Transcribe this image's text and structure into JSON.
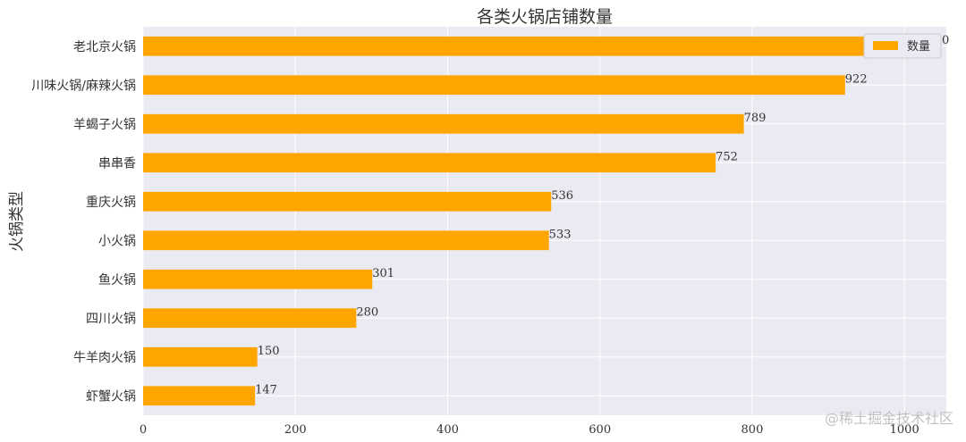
{
  "chart_data": {
    "type": "bar",
    "orientation": "horizontal",
    "title": "各类火锅店铺数量",
    "xlabel": "",
    "ylabel": "火锅类型",
    "categories": [
      "虾蟹火锅",
      "牛羊肉火锅",
      "四川火锅",
      "鱼火锅",
      "小火锅",
      "重庆火锅",
      "串串香",
      "羊蝎子火锅",
      "川味火锅/麻辣火锅",
      "老北京火锅"
    ],
    "series": [
      {
        "name": "数量",
        "values": [
          147,
          150,
          280,
          301,
          533,
          536,
          752,
          789,
          922,
          1020
        ],
        "color": "#FFA500"
      }
    ],
    "xlim": [
      0,
      1055
    ],
    "xticks": [
      0,
      200,
      400,
      600,
      800,
      1000
    ],
    "grid": true,
    "legend_position": "top-right",
    "background_color": "#EAEAF2"
  },
  "watermark": "@稀土掘金技术社区"
}
